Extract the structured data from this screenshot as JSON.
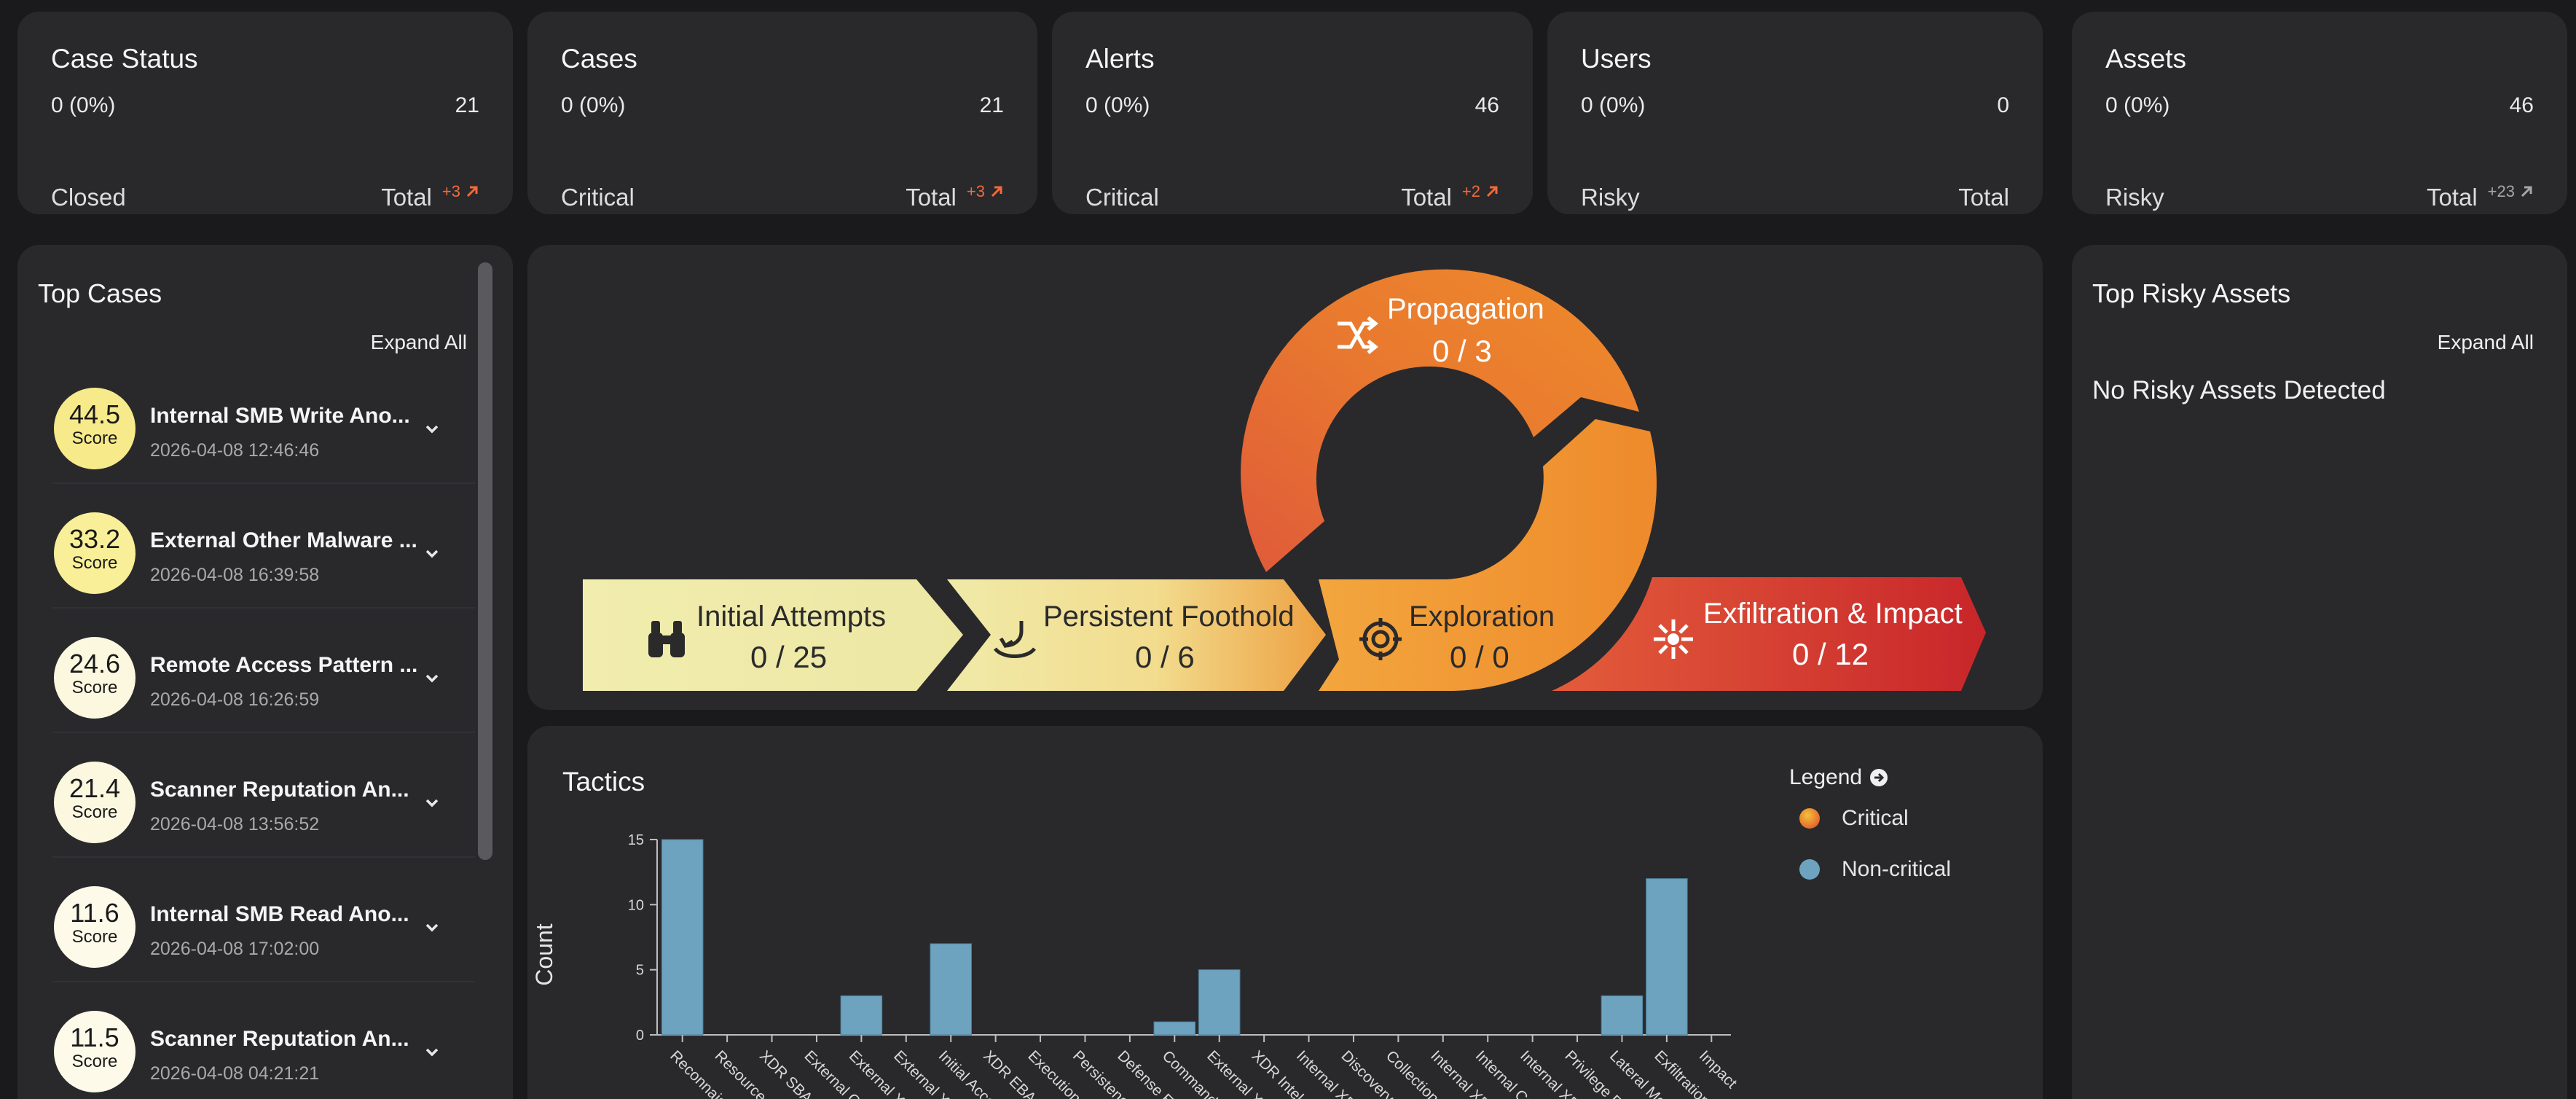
{
  "stats": [
    {
      "title": "Case Status",
      "pct": "0 (0%)",
      "count": "21",
      "label": "Closed",
      "total_label": "Total",
      "delta": "+3",
      "delta_color": "#f26a3b"
    },
    {
      "title": "Cases",
      "pct": "0 (0%)",
      "count": "21",
      "label": "Critical",
      "total_label": "Total",
      "delta": "+3",
      "delta_color": "#f26a3b"
    },
    {
      "title": "Alerts",
      "pct": "0 (0%)",
      "count": "46",
      "label": "Critical",
      "total_label": "Total",
      "delta": "+2",
      "delta_color": "#f26a3b"
    },
    {
      "title": "Users",
      "pct": "0 (0%)",
      "count": "0",
      "label": "Risky",
      "total_label": "Total",
      "delta": "",
      "delta_color": ""
    },
    {
      "title": "Assets",
      "pct": "0 (0%)",
      "count": "46",
      "label": "Risky",
      "total_label": "Total",
      "delta": "+23",
      "delta_color": "#a7a7a7"
    }
  ],
  "top_cases": {
    "title": "Top Cases",
    "expand_label": "Expand All",
    "score_label": "Score",
    "items": [
      {
        "score": "44.5",
        "name": "Internal SMB Write Ano...",
        "date": "2026-04-08 12:46:46",
        "color": "#f7ea8a"
      },
      {
        "score": "33.2",
        "name": "External Other Malware ...",
        "date": "2026-04-08 16:39:58",
        "color": "#f8ef98"
      },
      {
        "score": "24.6",
        "name": "Remote Access Pattern ...",
        "date": "2026-04-08 16:26:59",
        "color": "#fcf8e0"
      },
      {
        "score": "21.4",
        "name": "Scanner Reputation An...",
        "date": "2026-04-08 13:56:52",
        "color": "#fcf8e0"
      },
      {
        "score": "11.6",
        "name": "Internal SMB Read Ano...",
        "date": "2026-04-08 17:02:00",
        "color": "#fdfaea"
      },
      {
        "score": "11.5",
        "name": "Scanner Reputation An...",
        "date": "2026-04-08 04:21:21",
        "color": "#fdfaea"
      }
    ]
  },
  "risky_assets": {
    "title": "Top Risky Assets",
    "expand_label": "Expand All",
    "empty_text": "No Risky Assets Detected"
  },
  "funnel": {
    "initial": {
      "label": "Initial Attempts",
      "count": "0 / 25",
      "icon": "binoculars-icon"
    },
    "persistent": {
      "label": "Persistent Foothold",
      "count": "0 / 6",
      "icon": "anchor-icon"
    },
    "exploration": {
      "label": "Exploration",
      "count": "0 / 0",
      "icon": "crosshair-icon"
    },
    "propagation": {
      "label": "Propagation",
      "count": "0 / 3",
      "icon": "shuffle-icon"
    },
    "exfiltration": {
      "label": "Exfiltration & Impact",
      "count": "0 / 12",
      "icon": "burst-icon"
    }
  },
  "tactics": {
    "title": "Tactics",
    "legend_title": "Legend",
    "legend": [
      {
        "label": "Critical",
        "color": "#e8762f"
      },
      {
        "label": "Non-critical",
        "color": "#6ea3c0"
      }
    ]
  },
  "chart_data": {
    "type": "bar",
    "ylabel": "Count",
    "xlabel": "",
    "ylim": [
      0,
      15
    ],
    "yticks": [
      0,
      5,
      10,
      15
    ],
    "categories": [
      "Reconnaissa",
      "Resource De",
      "XDR SBA",
      "External Cre",
      "External XDR",
      "External XDR",
      "Initial Access",
      "XDR EBA",
      "Execution",
      "Persistence",
      "Defense Eva",
      "Command an",
      "External XDR",
      "XDR Intel",
      "Internal XDR",
      "Discovery",
      "Collection",
      "Internal XDR",
      "Internal Cre",
      "Internal XDR",
      "Privilege Esc",
      "Lateral Move",
      "Exfiltration",
      "Impact"
    ],
    "series": [
      {
        "name": "Non-critical",
        "color": "#6ea3c0",
        "values": [
          15,
          0,
          0,
          0,
          3,
          0,
          7,
          0,
          0,
          0,
          0,
          1,
          5,
          0,
          0,
          0,
          0,
          0,
          0,
          0,
          0,
          3,
          12,
          0
        ]
      }
    ]
  }
}
